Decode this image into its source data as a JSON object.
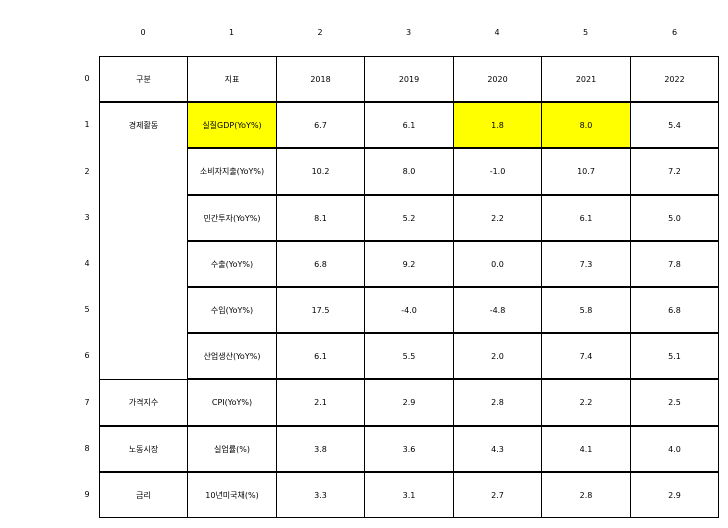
{
  "column_headers": [
    "0",
    "1",
    "2",
    "3",
    "4",
    "5",
    "6"
  ],
  "row_headers": [
    "0",
    "1",
    "2",
    "3",
    "4",
    "5",
    "6",
    "7",
    "8",
    "9"
  ],
  "highlight_color": "#ffff00",
  "rows": [
    [
      "구분",
      "지표",
      "2018",
      "2019",
      "2020",
      "2021",
      "2022"
    ],
    [
      "경제활동",
      "실질GDP(YoY%)",
      "6.7",
      "6.1",
      "1.8",
      "8.0",
      "5.4"
    ],
    [
      "",
      "소비자지출(YoY%)",
      "10.2",
      "8.0",
      "-1.0",
      "10.7",
      "7.2"
    ],
    [
      "",
      "민간투자(YoY%)",
      "8.1",
      "5.2",
      "2.2",
      "6.1",
      "5.0"
    ],
    [
      "",
      "수출(YoY%)",
      "6.8",
      "9.2",
      "0.0",
      "7.3",
      "7.8"
    ],
    [
      "",
      "수입(YoY%)",
      "17.5",
      "-4.0",
      "-4.8",
      "5.8",
      "6.8"
    ],
    [
      "",
      "산업생산(YoY%)",
      "6.1",
      "5.5",
      "2.0",
      "7.4",
      "5.1"
    ],
    [
      "가격지수",
      "CPI(YoY%)",
      "2.1",
      "2.9",
      "2.8",
      "2.2",
      "2.5"
    ],
    [
      "노동시장",
      "실업률(%)",
      "3.8",
      "3.6",
      "4.3",
      "4.1",
      "4.0"
    ],
    [
      "금리",
      "10년미국채(%)",
      "3.3",
      "3.1",
      "2.7",
      "2.8",
      "2.9"
    ]
  ],
  "highlighted_cells": [
    [
      1,
      1
    ],
    [
      1,
      4
    ],
    [
      1,
      5
    ]
  ]
}
